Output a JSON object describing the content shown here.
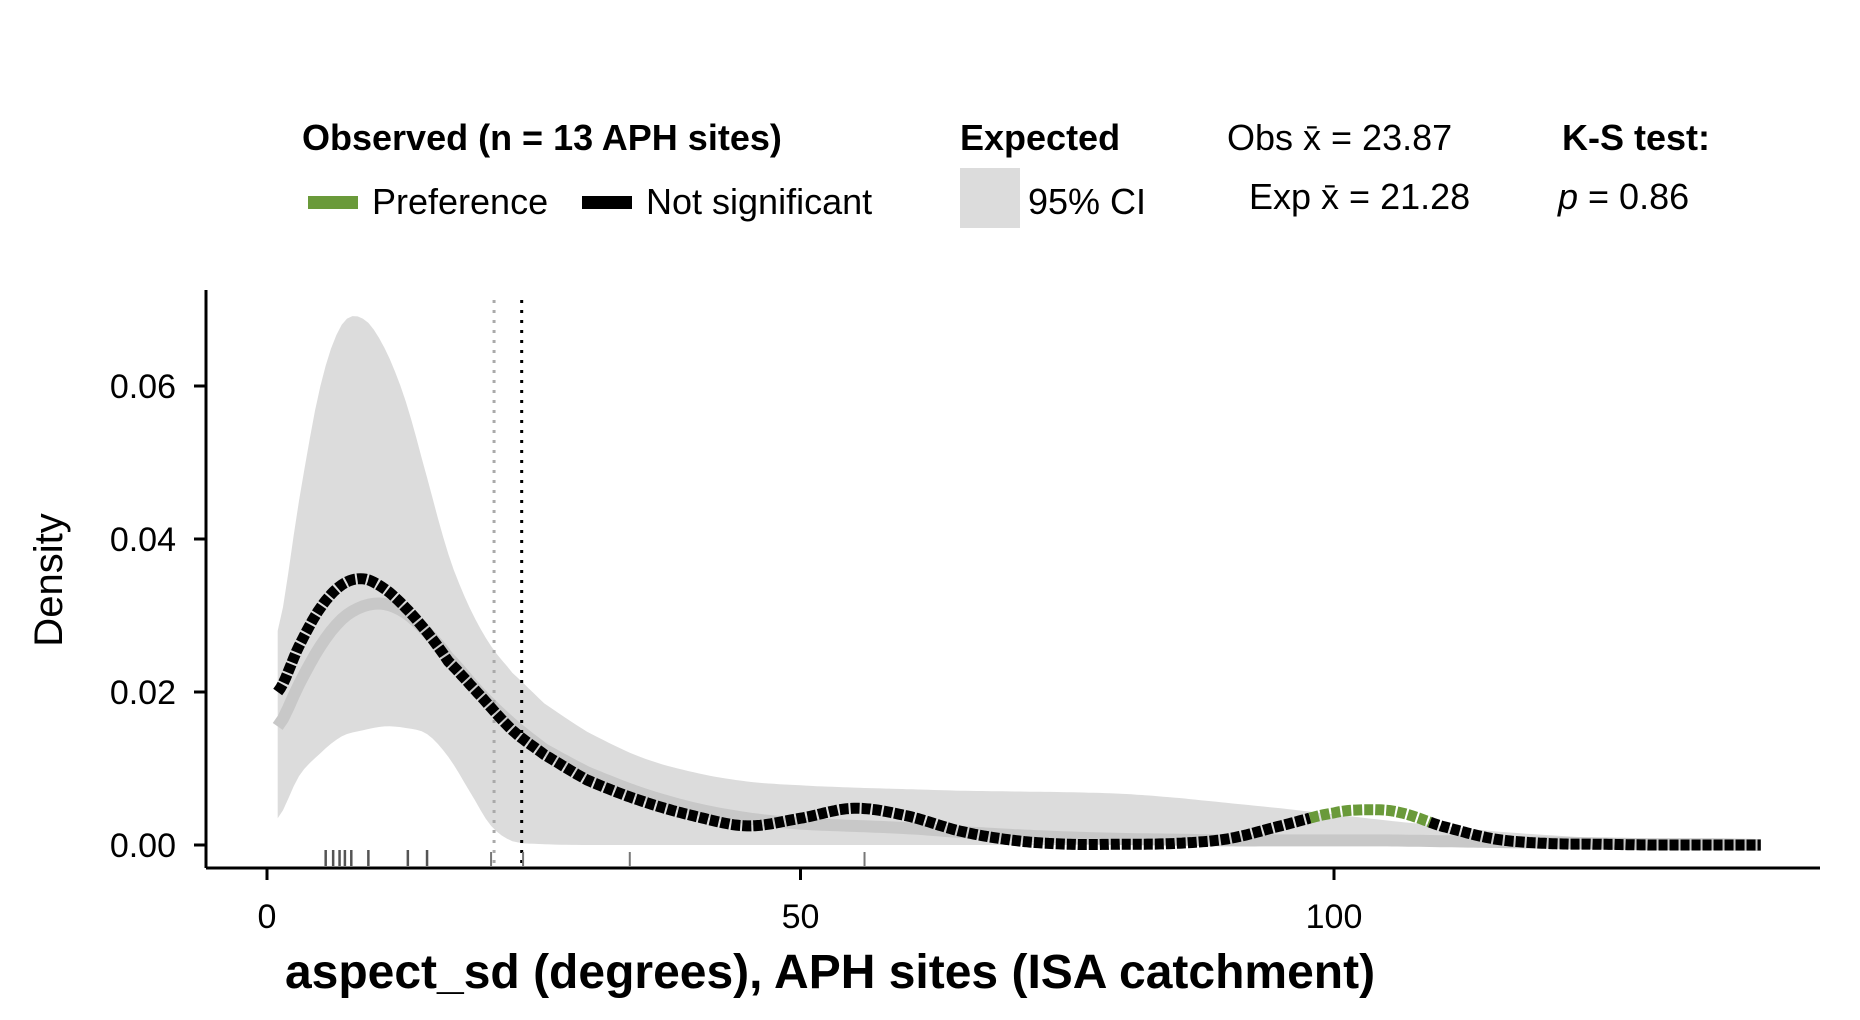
{
  "chart_data": {
    "type": "line",
    "title": "",
    "xlabel": "aspect_sd (degrees), APH sites (ISA catchment)",
    "ylabel": "Density",
    "xlim": [
      -6,
      145
    ],
    "ylim": [
      -0.003,
      0.072
    ],
    "x_ticks": [
      0,
      50,
      100
    ],
    "x_tick_labels": [
      "0",
      "50",
      "100"
    ],
    "y_ticks": [
      0.0,
      0.02,
      0.04,
      0.06
    ],
    "y_tick_labels": [
      "0.00",
      "0.02",
      "0.04",
      "0.06"
    ],
    "grid": false,
    "legend": {
      "observed_title": "Observed (n = 13 APH sites)",
      "preference_label": "Preference",
      "not_significant_label": "Not significant",
      "expected_title": "Expected",
      "ci_label": "95% CI",
      "obs_mean_text": "Obs x̄ = 23.87",
      "exp_mean_text": "Exp x̄ = 21.28",
      "ks_title": "K-S test:",
      "ks_p_italic": "p",
      "ks_p_rest": " = 0.86"
    },
    "colors": {
      "preference": "#6a9a3a",
      "not_significant": "#000000",
      "ci_band": "#dcdcdc",
      "expected_line": "#c8c8c8",
      "obs_mean_line": "#000000",
      "exp_mean_line": "#aaaaaa",
      "rug": "#555555"
    },
    "observed_mean": 23.87,
    "expected_mean": 21.28,
    "preference_range": [
      98,
      109
    ],
    "observed_density": {
      "x": [
        1,
        3,
        5,
        7,
        9,
        11,
        13,
        15,
        17,
        20,
        23,
        26,
        30,
        35,
        40,
        45,
        50,
        55,
        60,
        65,
        70,
        75,
        80,
        85,
        90,
        95,
        100,
        103,
        106,
        110,
        115,
        120,
        125,
        130,
        135,
        140
      ],
      "y": [
        0.02,
        0.026,
        0.031,
        0.034,
        0.0348,
        0.0335,
        0.031,
        0.0278,
        0.024,
        0.0195,
        0.015,
        0.0118,
        0.0085,
        0.0058,
        0.0038,
        0.0025,
        0.0035,
        0.0048,
        0.0038,
        0.0018,
        0.0006,
        0.0001,
        0.0001,
        0.0002,
        0.0008,
        0.0025,
        0.0042,
        0.0046,
        0.0043,
        0.0025,
        0.0008,
        0.0002,
        0.0001,
        0.0,
        0.0,
        0.0
      ]
    },
    "expected_density": {
      "x": [
        1,
        3,
        5,
        7,
        9,
        11,
        13,
        15,
        17,
        20,
        23,
        26,
        30,
        35,
        40,
        45,
        50,
        55,
        60,
        65,
        70,
        75,
        80,
        85,
        90,
        95,
        100,
        105,
        110,
        115,
        120,
        125,
        130,
        135,
        140
      ],
      "y": [
        0.0155,
        0.021,
        0.026,
        0.0295,
        0.0312,
        0.0315,
        0.0303,
        0.0278,
        0.0245,
        0.0198,
        0.0158,
        0.0125,
        0.0095,
        0.0068,
        0.0048,
        0.0035,
        0.0028,
        0.0025,
        0.0022,
        0.0017,
        0.0013,
        0.001,
        0.0008,
        0.0007,
        0.0006,
        0.0006,
        0.0006,
        0.0006,
        0.0005,
        0.0004,
        0.0003,
        0.0002,
        0.0001,
        0.0001,
        0.0
      ]
    },
    "ci_band": {
      "x": [
        1,
        3,
        5,
        7,
        9,
        11,
        13,
        15,
        17,
        19,
        21,
        23,
        26,
        30,
        35,
        40,
        45,
        50,
        55,
        60,
        65,
        70,
        75,
        80,
        85,
        90,
        95,
        100,
        105,
        110,
        115,
        120,
        125,
        130,
        135,
        140
      ],
      "lower": [
        0.0035,
        0.009,
        0.012,
        0.0142,
        0.015,
        0.0155,
        0.0153,
        0.0145,
        0.0115,
        0.007,
        0.0025,
        0.0005,
        0.0001,
        0.0,
        0.0,
        0.0,
        0.0,
        0.0,
        0.0,
        0.0,
        0.0,
        0.0,
        0.0,
        0.0,
        0.0,
        0.0,
        0.0,
        0.0,
        0.0,
        0.0,
        0.0,
        0.0,
        0.0,
        0.0,
        0.0,
        0.0
      ],
      "upper": [
        0.028,
        0.045,
        0.06,
        0.068,
        0.0688,
        0.065,
        0.058,
        0.048,
        0.038,
        0.031,
        0.026,
        0.0225,
        0.0185,
        0.0148,
        0.0115,
        0.0095,
        0.0083,
        0.0078,
        0.0075,
        0.0073,
        0.0071,
        0.007,
        0.0069,
        0.0067,
        0.0062,
        0.0055,
        0.0048,
        0.004,
        0.0032,
        0.0025,
        0.0018,
        0.0013,
        0.0009,
        0.0006,
        0.0003,
        0.0001
      ]
    },
    "rug_observed": [
      5.5,
      6.2,
      6.8,
      7.3,
      7.9,
      9.5,
      13.2,
      15
    ],
    "rug_extra": [
      21,
      24,
      34,
      56
    ]
  }
}
